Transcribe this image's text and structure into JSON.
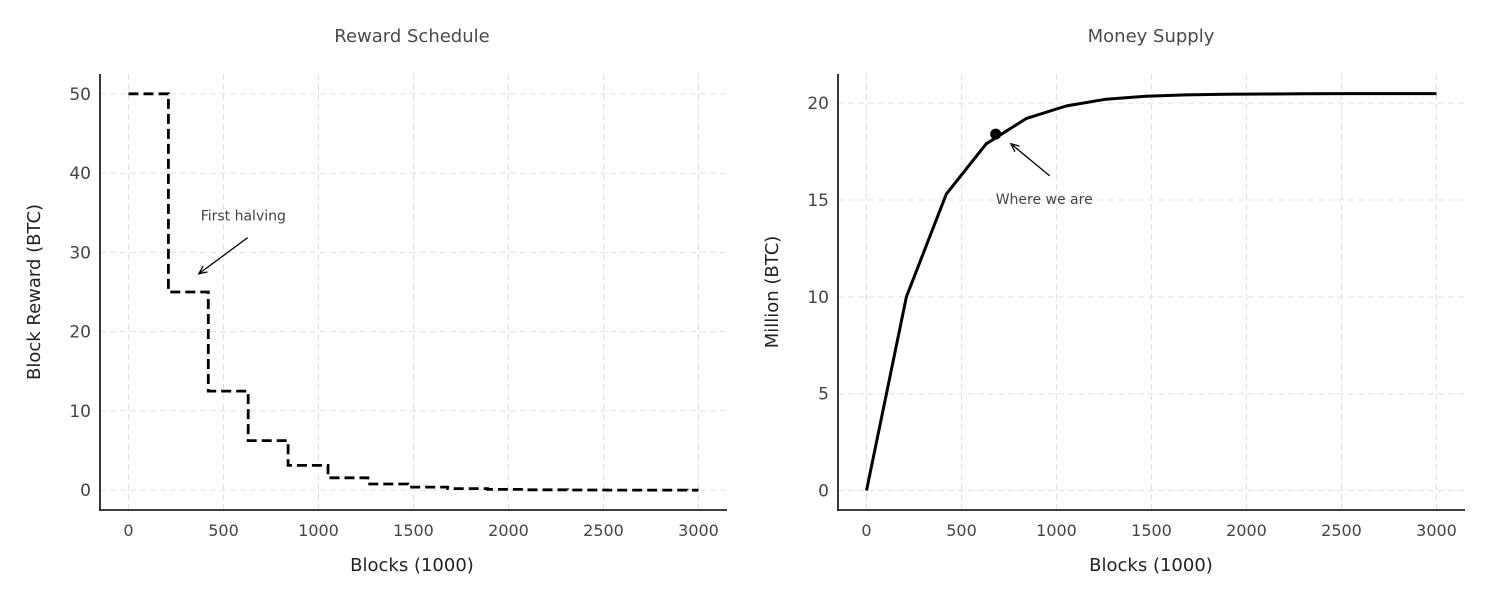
{
  "chart_data": [
    {
      "type": "line",
      "title": "Reward Schedule",
      "xlabel": "Blocks (1000)",
      "ylabel": "Block Reward (BTC)",
      "xlim": [
        -150,
        3150
      ],
      "ylim": [
        -2.5,
        52.5
      ],
      "xticks": [
        0,
        500,
        1000,
        1500,
        2000,
        2500,
        3000
      ],
      "yticks": [
        0,
        10,
        20,
        30,
        40,
        50
      ],
      "grid": true,
      "line_style": "dashed-step",
      "color": "#000000",
      "series": [
        {
          "x": [
            0,
            210,
            210,
            420,
            420,
            630,
            630,
            840,
            840,
            1050,
            1050,
            1260,
            1260,
            1470,
            1470,
            1680,
            1680,
            1890,
            1890,
            2100,
            2100,
            2310,
            2310,
            2520,
            2520,
            2730,
            2730,
            2940,
            2940,
            3000
          ],
          "y": [
            50,
            50,
            25,
            25,
            12.5,
            12.5,
            6.25,
            6.25,
            3.125,
            3.125,
            1.5625,
            1.5625,
            0.78,
            0.78,
            0.39,
            0.39,
            0.2,
            0.2,
            0.1,
            0.1,
            0.05,
            0.05,
            0.02,
            0.02,
            0.01,
            0.01,
            0.005,
            0.005,
            0,
            0
          ]
        }
      ],
      "annotations": [
        {
          "text": "First halving",
          "text_x": 380,
          "text_y": 34,
          "arrow_x": 370,
          "arrow_y": 27.3
        }
      ]
    },
    {
      "type": "line",
      "title": "Money Supply",
      "xlabel": "Blocks (1000)",
      "ylabel": "Million (BTC)",
      "xlim": [
        -150,
        3150
      ],
      "ylim": [
        -1,
        21.5
      ],
      "xticks": [
        0,
        500,
        1000,
        1500,
        2000,
        2500,
        3000
      ],
      "yticks": [
        0,
        5,
        10,
        15,
        20
      ],
      "grid": true,
      "color": "#000000",
      "series": [
        {
          "x": [
            0,
            210,
            420,
            630,
            840,
            1050,
            1260,
            1470,
            1680,
            1890,
            2100,
            2310,
            2520,
            2730,
            2940,
            3000
          ],
          "y": [
            0,
            10.0,
            15.3,
            17.9,
            19.2,
            19.85,
            20.2,
            20.35,
            20.42,
            20.45,
            20.47,
            20.48,
            20.49,
            20.49,
            20.49,
            20.49
          ]
        }
      ],
      "marker": {
        "x": 680,
        "y": 18.4
      },
      "annotations": [
        {
          "text": "Where we are",
          "text_x": 680,
          "text_y": 14.8,
          "arrow_x": 760,
          "arrow_y": 17.9
        }
      ]
    }
  ]
}
